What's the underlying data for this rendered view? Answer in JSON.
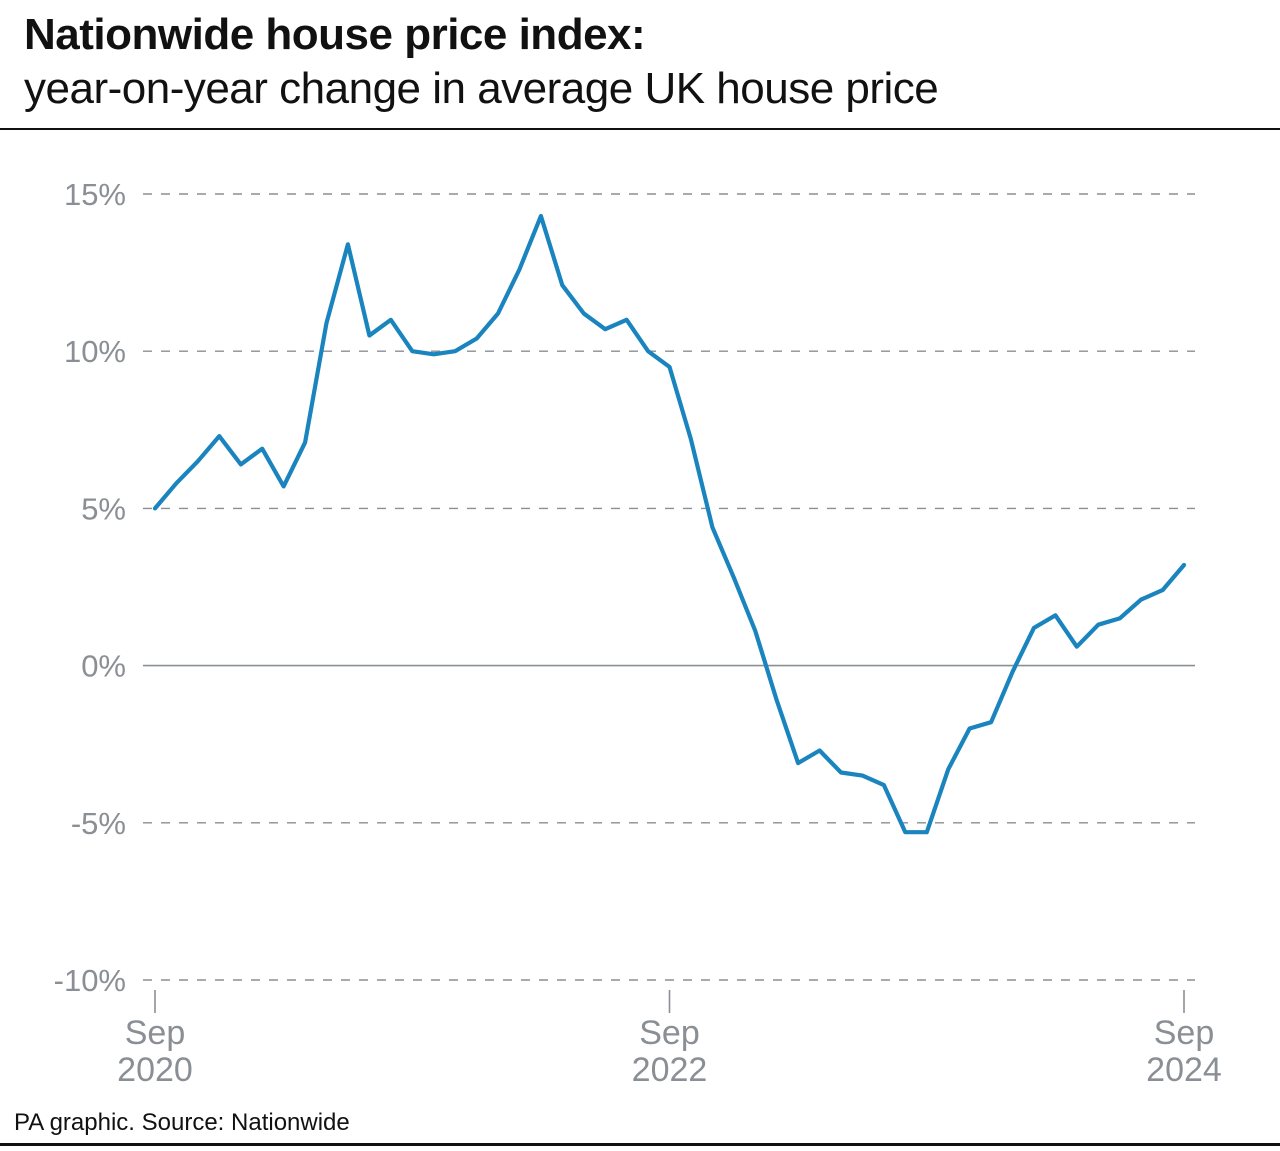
{
  "header": {
    "title": "Nationwide house price index:",
    "subtitle": "year-on-year change in average UK house price"
  },
  "footer": {
    "source": "PA graphic. Source: Nationwide"
  },
  "colors": {
    "line": "#1a84bf",
    "grid": "#8a8f95",
    "axis_text": "#8a8f95"
  },
  "chart_data": {
    "type": "line",
    "title": "Nationwide house price index:",
    "subtitle": "year-on-year change in average UK house price",
    "xlabel": "",
    "ylabel": "",
    "ylim": [
      -10,
      15
    ],
    "yticks": [
      {
        "value": 15,
        "label": "15%"
      },
      {
        "value": 10,
        "label": "10%"
      },
      {
        "value": 5,
        "label": "5%"
      },
      {
        "value": 0,
        "label": "0%"
      },
      {
        "value": -5,
        "label": "-5%"
      },
      {
        "value": -10,
        "label": "-10%"
      }
    ],
    "xticks": [
      {
        "index": 0,
        "month": "Sep",
        "year": "2020"
      },
      {
        "index": 24,
        "month": "Sep",
        "year": "2022"
      },
      {
        "index": 48,
        "month": "Sep",
        "year": "2024"
      }
    ],
    "grid": "horizontal dashed",
    "series": [
      {
        "x_start": "Sep 2020",
        "frequency": "monthly",
        "values": [
          5.0,
          5.8,
          6.5,
          7.3,
          6.4,
          6.9,
          5.7,
          7.1,
          10.9,
          13.4,
          10.5,
          11.0,
          10.0,
          9.9,
          10.0,
          10.4,
          11.2,
          12.6,
          14.3,
          12.1,
          11.2,
          10.7,
          11.0,
          10.0,
          9.5,
          7.2,
          4.4,
          2.8,
          1.1,
          -1.1,
          -3.1,
          -2.7,
          -3.4,
          -3.5,
          -3.8,
          -5.3,
          -5.3,
          -3.3,
          -2.0,
          -1.8,
          -0.2,
          1.2,
          1.6,
          0.6,
          1.3,
          1.5,
          2.1,
          2.4,
          3.2
        ]
      }
    ]
  }
}
